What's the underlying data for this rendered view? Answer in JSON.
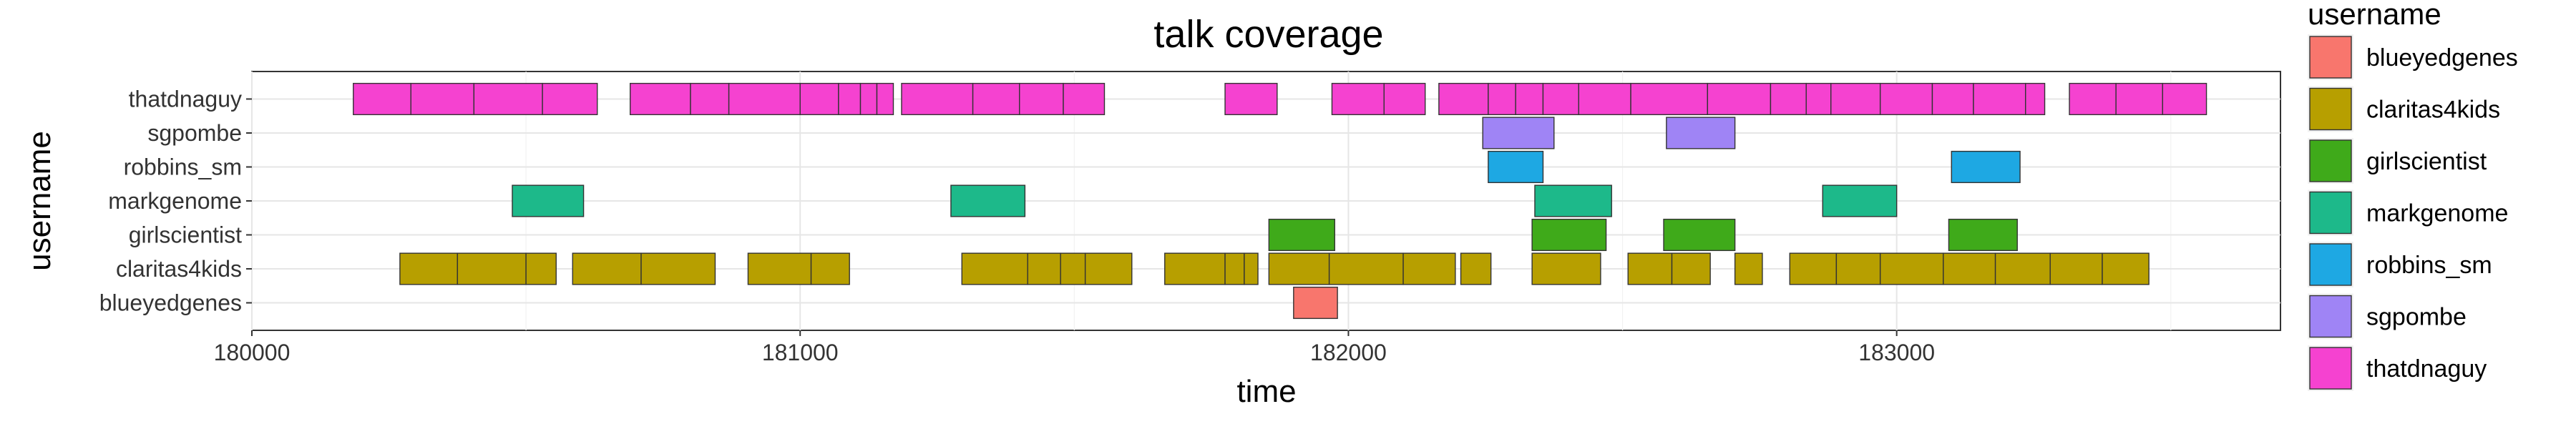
{
  "chart_data": {
    "type": "bar",
    "subtype": "gantt",
    "title": "talk coverage",
    "xlabel": "time",
    "ylabel": "username",
    "xlim": [
      180000,
      183700
    ],
    "xticks": [
      180000,
      181000,
      182000,
      183000
    ],
    "xtick_labels": [
      "180000",
      "181000",
      "182000",
      "183000"
    ],
    "categories": [
      "thatdnaguy",
      "sgpombe",
      "robbins_sm",
      "markgenome",
      "girlscientist",
      "claritas4kids",
      "blueyedgenes"
    ],
    "grid": true,
    "legend": {
      "title": "username",
      "placement": "right",
      "entries": [
        {
          "name": "blueyedgenes",
          "color": "#F8766D"
        },
        {
          "name": "claritas4kids",
          "color": "#B79F00"
        },
        {
          "name": "girlscientist",
          "color": "#3FAA1A"
        },
        {
          "name": "markgenome",
          "color": "#1DB98A"
        },
        {
          "name": "robbins_sm",
          "color": "#1EA8E3"
        },
        {
          "name": "sgpombe",
          "color": "#9F84F5"
        },
        {
          "name": "thatdnaguy",
          "color": "#F542D0"
        }
      ]
    },
    "series": [
      {
        "name": "thatdnaguy",
        "color": "#F542D0",
        "segments": [
          [
            180185,
            180290
          ],
          [
            180290,
            180405
          ],
          [
            180405,
            180530
          ],
          [
            180530,
            180630
          ],
          [
            180690,
            180800
          ],
          [
            180800,
            180870
          ],
          [
            180870,
            181000
          ],
          [
            181000,
            181070
          ],
          [
            181070,
            181110
          ],
          [
            181110,
            181140
          ],
          [
            181140,
            181170
          ],
          [
            181185,
            181315
          ],
          [
            181315,
            181400
          ],
          [
            181400,
            181480
          ],
          [
            181480,
            181555
          ],
          [
            181775,
            181870
          ],
          [
            181970,
            182065
          ],
          [
            182065,
            182140
          ],
          [
            182165,
            182255
          ],
          [
            182255,
            182305
          ],
          [
            182305,
            182355
          ],
          [
            182355,
            182420
          ],
          [
            182420,
            182515
          ],
          [
            182515,
            182655
          ],
          [
            182655,
            182770
          ],
          [
            182770,
            182835
          ],
          [
            182835,
            182880
          ],
          [
            182880,
            182970
          ],
          [
            182970,
            183065
          ],
          [
            183065,
            183140
          ],
          [
            183140,
            183235
          ],
          [
            183235,
            183270
          ],
          [
            183315,
            183400
          ],
          [
            183400,
            183485
          ],
          [
            183485,
            183565
          ]
        ]
      },
      {
        "name": "sgpombe",
        "color": "#9F84F5",
        "segments": [
          [
            182245,
            182375
          ],
          [
            182580,
            182705
          ]
        ]
      },
      {
        "name": "robbins_sm",
        "color": "#1EA8E3",
        "segments": [
          [
            182255,
            182355
          ],
          [
            183100,
            183225
          ]
        ]
      },
      {
        "name": "markgenome",
        "color": "#1DB98A",
        "segments": [
          [
            180475,
            180605
          ],
          [
            181275,
            181410
          ],
          [
            182340,
            182480
          ],
          [
            182865,
            183000
          ]
        ]
      },
      {
        "name": "girlscientist",
        "color": "#3FAA1A",
        "segments": [
          [
            181855,
            181975
          ],
          [
            182335,
            182470
          ],
          [
            182575,
            182705
          ],
          [
            183095,
            183220
          ]
        ]
      },
      {
        "name": "claritas4kids",
        "color": "#B79F00",
        "segments": [
          [
            180270,
            180375
          ],
          [
            180375,
            180500
          ],
          [
            180500,
            180555
          ],
          [
            180585,
            180710
          ],
          [
            180710,
            180845
          ],
          [
            180905,
            181020
          ],
          [
            181020,
            181090
          ],
          [
            181295,
            181415
          ],
          [
            181415,
            181475
          ],
          [
            181475,
            181520
          ],
          [
            181520,
            181605
          ],
          [
            181665,
            181775
          ],
          [
            181775,
            181810
          ],
          [
            181810,
            181835
          ],
          [
            181855,
            181965
          ],
          [
            181965,
            182100
          ],
          [
            182100,
            182195
          ],
          [
            182205,
            182260
          ],
          [
            182335,
            182460
          ],
          [
            182510,
            182590
          ],
          [
            182590,
            182660
          ],
          [
            182705,
            182755
          ],
          [
            182805,
            182890
          ],
          [
            182890,
            182970
          ],
          [
            182970,
            183085
          ],
          [
            183085,
            183180
          ],
          [
            183180,
            183280
          ],
          [
            183280,
            183375
          ],
          [
            183375,
            183460
          ]
        ]
      },
      {
        "name": "blueyedgenes",
        "color": "#F8766D",
        "segments": [
          [
            181900,
            181980
          ]
        ]
      }
    ]
  }
}
